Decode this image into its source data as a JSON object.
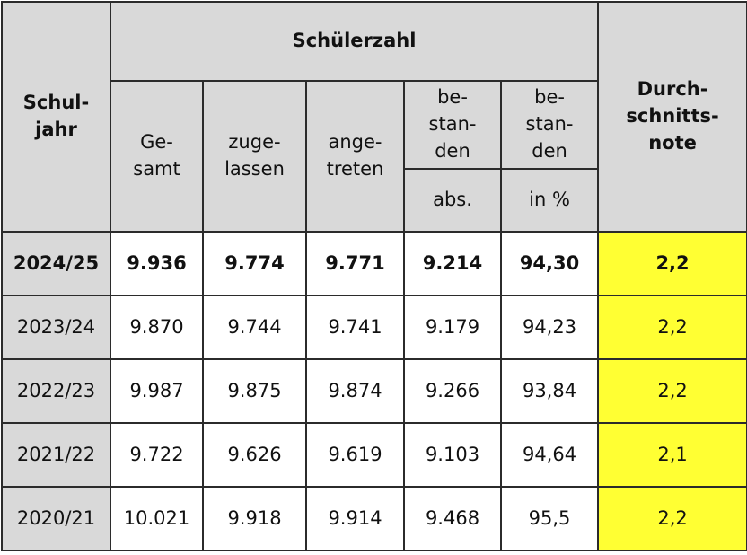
{
  "header": {
    "schuljahr": "Schul-\njahr",
    "schuelerzahl": "Schülerzahl",
    "durchschnittsnote": "Durch-\nschnitts-\nnote",
    "gesamt": "Ge-\nsamt",
    "zugelassen": "zuge-\nlassen",
    "angetreten": "ange-\ntreten",
    "bestanden_1": "be-\nstan-\nden",
    "bestanden_2": "be-\nstan-\nden",
    "abs": "abs.",
    "in_prozent": "in %"
  },
  "rows": [
    {
      "year": "2024/25",
      "gesamt": "9.936",
      "zugelassen": "9.774",
      "angetreten": "9.771",
      "bestanden_abs": "9.214",
      "bestanden_pct": "94,30",
      "note": "2,2"
    },
    {
      "year": "2023/24",
      "gesamt": "9.870",
      "zugelassen": "9.744",
      "angetreten": "9.741",
      "bestanden_abs": "9.179",
      "bestanden_pct": "94,23",
      "note": "2,2"
    },
    {
      "year": "2022/23",
      "gesamt": "9.987",
      "zugelassen": "9.875",
      "angetreten": "9.874",
      "bestanden_abs": "9.266",
      "bestanden_pct": "93,84",
      "note": "2,2"
    },
    {
      "year": "2021/22",
      "gesamt": "9.722",
      "zugelassen": "9.626",
      "angetreten": "9.619",
      "bestanden_abs": "9.103",
      "bestanden_pct": "94,64",
      "note": "2,1"
    },
    {
      "year": "2020/21",
      "gesamt": "10.021",
      "zugelassen": "9.918",
      "angetreten": "9.914",
      "bestanden_abs": "9.468",
      "bestanden_pct": "95,5",
      "note": "2,2"
    }
  ],
  "colors": {
    "header_bg": "#d9d9d9",
    "note_bg": "#ffff33",
    "border": "#2b2b2b"
  }
}
